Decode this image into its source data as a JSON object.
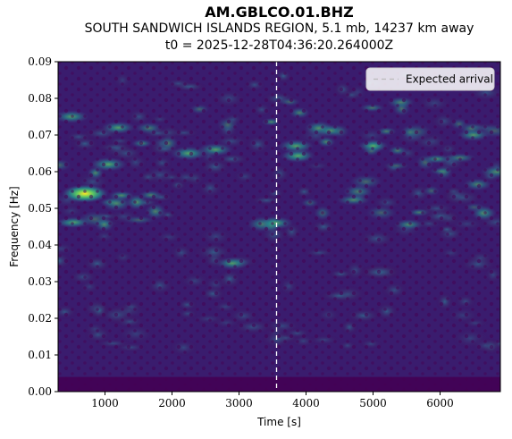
{
  "header": {
    "station": "AM.GBLCO.01.BHZ",
    "event": "SOUTH SANDWICH ISLANDS REGION, 5.1 mb, 14237 km away",
    "t0": "t0 = 2025-12-28T04:36:20.264000Z"
  },
  "chart_data": {
    "type": "heatmap",
    "colormap": "viridis",
    "xlabel": "Time [s]",
    "ylabel": "Frequency [Hz]",
    "xlim": [
      300,
      6900
    ],
    "ylim": [
      0.0,
      0.09
    ],
    "x_ticks": [
      1000,
      2000,
      3000,
      4000,
      5000,
      6000
    ],
    "y_ticks": [
      0.0,
      0.01,
      0.02,
      0.03,
      0.04,
      0.05,
      0.06,
      0.07,
      0.08,
      0.09
    ],
    "y_tick_labels": [
      "0.00",
      "0.01",
      "0.02",
      "0.03",
      "0.04",
      "0.05",
      "0.06",
      "0.07",
      "0.08",
      "0.09"
    ],
    "expected_arrival_s": 3560,
    "legend": {
      "placement": "top-right",
      "entries": [
        "Expected arrival"
      ]
    },
    "hotspots": [
      {
        "t": 700,
        "f": 0.054,
        "power": 1.0
      },
      {
        "t": 1050,
        "f": 0.062,
        "power": 0.55
      },
      {
        "t": 2250,
        "f": 0.065,
        "power": 0.55
      },
      {
        "t": 2650,
        "f": 0.066,
        "power": 0.45
      },
      {
        "t": 3550,
        "f": 0.046,
        "power": 0.45
      },
      {
        "t": 3850,
        "f": 0.067,
        "power": 0.5
      },
      {
        "t": 2900,
        "f": 0.035,
        "power": 0.4
      },
      {
        "t": 500,
        "f": 0.075,
        "power": 0.45
      },
      {
        "t": 1200,
        "f": 0.072,
        "power": 0.4
      },
      {
        "t": 6500,
        "f": 0.07,
        "power": 0.35
      },
      {
        "t": 5000,
        "f": 0.067,
        "power": 0.3
      }
    ]
  }
}
